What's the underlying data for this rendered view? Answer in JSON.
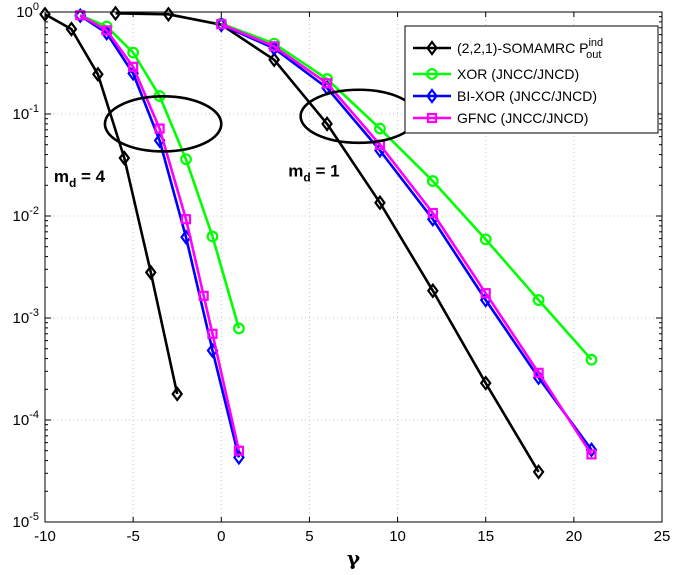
{
  "chart_data": {
    "type": "line",
    "title": "",
    "xlabel": "γ",
    "ylabel": "",
    "xlim": [
      -10,
      25
    ],
    "ylim_log10": [
      -5,
      0
    ],
    "y_scale": "log",
    "grid": true,
    "legend_position": "top-right",
    "x_ticks": [
      -10,
      -5,
      0,
      5,
      10,
      15,
      20,
      25
    ],
    "x_tick_labels": [
      "-10",
      "-5",
      "0",
      "5",
      "10",
      "15",
      "20",
      "25"
    ],
    "y_ticks_exp": [
      -5,
      -4,
      -3,
      -2,
      -1,
      0
    ],
    "y_tick_base": "10",
    "y_tick_exps": [
      "-5",
      "-4",
      "-3",
      "-2",
      "-1",
      "0"
    ],
    "series": [
      {
        "name": "(2,2,1)-SOMAMRC P",
        "name_sup": "ind",
        "name_sub": "out",
        "color": "#000000",
        "marker": "diamond",
        "groups": [
          {
            "x": [
              -10,
              -8.5,
              -7,
              -5.5,
              -4,
              -2.5
            ],
            "y": [
              0.95,
              0.68,
              0.245,
              0.037,
              0.0028,
              0.00018
            ]
          },
          {
            "x": [
              -6,
              -3,
              0,
              3,
              6,
              9,
              12,
              15,
              18
            ],
            "y": [
              0.97,
              0.95,
              0.75,
              0.34,
              0.08,
              0.0135,
              0.00185,
              0.00023,
              3.1e-05
            ]
          }
        ]
      },
      {
        "name": "XOR (JNCC/JNCD)",
        "color": "#00ff00",
        "marker": "circle",
        "groups": [
          {
            "x": [
              -8,
              -6.5,
              -5,
              -3.5,
              -2,
              -0.5,
              1
            ],
            "y": [
              0.93,
              0.72,
              0.4,
              0.15,
              0.036,
              0.0063,
              0.00079
            ]
          },
          {
            "x": [
              0,
              3,
              6,
              9,
              12,
              15,
              18,
              21
            ],
            "y": [
              0.77,
              0.49,
              0.22,
              0.072,
              0.022,
              0.0059,
              0.0015,
              0.00039
            ]
          }
        ]
      },
      {
        "name": "BI-XOR (JNCC/JNCD)",
        "color": "#0000ff",
        "marker": "diamond",
        "groups": [
          {
            "x": [
              -8,
              -6.5,
              -5,
              -3.5,
              -2,
              -0.5,
              1
            ],
            "y": [
              0.92,
              0.62,
              0.25,
              0.055,
              0.0062,
              0.00048,
              4.3e-05
            ]
          },
          {
            "x": [
              0,
              3,
              6,
              9,
              12,
              15,
              18,
              21
            ],
            "y": [
              0.75,
              0.44,
              0.18,
              0.044,
              0.0093,
              0.0015,
              0.00026,
              5.1e-05
            ]
          }
        ]
      },
      {
        "name": "GFNC (JNCC/JNCD)",
        "color": "#ff00ff",
        "marker": "square",
        "groups": [
          {
            "x": [
              -8,
              -6.5,
              -5,
              -3.5,
              -2,
              -1,
              -0.5,
              1
            ],
            "y": [
              0.93,
              0.66,
              0.29,
              0.072,
              0.0093,
              0.00165,
              0.0007,
              5e-05
            ]
          },
          {
            "x": [
              0,
              3,
              6,
              9,
              12,
              15,
              18,
              21
            ],
            "y": [
              0.76,
              0.46,
              0.2,
              0.05,
              0.0107,
              0.00175,
              0.00029,
              4.6e-05
            ]
          }
        ]
      }
    ],
    "annotations": [
      {
        "text": "m",
        "sub": "d",
        "rest": " = 4"
      },
      {
        "text": "m",
        "sub": "d",
        "rest": " = 1"
      }
    ],
    "ellipses": [
      {
        "cx": -3.3,
        "cy": 0.08,
        "rx_units": 3.3,
        "ry_decades": 0.27
      },
      {
        "cx": 7.8,
        "cy": 0.095,
        "rx_units": 3.3,
        "ry_decades": 0.26
      }
    ]
  }
}
